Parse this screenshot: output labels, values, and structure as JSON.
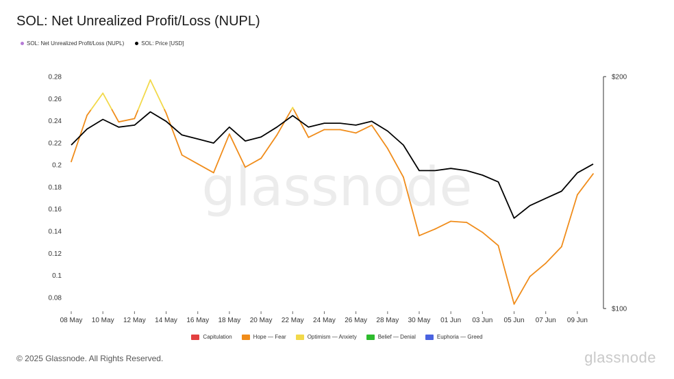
{
  "title": "SOL: Net Unrealized Profit/Loss (NUPL)",
  "top_legend": [
    {
      "label": "SOL: Net Unrealized Profit/Loss (NUPL)",
      "color": "#b57bd6"
    },
    {
      "label": "SOL: Price [USD]",
      "color": "#000000"
    }
  ],
  "bottom_legend": [
    {
      "label": "Capitulation",
      "color": "#e34040"
    },
    {
      "label": "Hope — Fear",
      "color": "#f08c1a"
    },
    {
      "label": "Optimism — Anxiety",
      "color": "#f2d94a"
    },
    {
      "label": "Belief — Denial",
      "color": "#2dbb2d"
    },
    {
      "label": "Euphoria — Greed",
      "color": "#4a63e0"
    }
  ],
  "watermark": "glassnode",
  "footer": "© 2025 Glassnode. All Rights Reserved.",
  "brand": "glassnode",
  "chart_data": {
    "type": "line",
    "x": [
      "2025-05-08",
      "2025-05-09",
      "2025-05-10",
      "2025-05-11",
      "2025-05-12",
      "2025-05-13",
      "2025-05-14",
      "2025-05-15",
      "2025-05-16",
      "2025-05-17",
      "2025-05-18",
      "2025-05-19",
      "2025-05-20",
      "2025-05-21",
      "2025-05-22",
      "2025-05-23",
      "2025-05-24",
      "2025-05-25",
      "2025-05-26",
      "2025-05-27",
      "2025-05-28",
      "2025-05-29",
      "2025-05-30",
      "2025-05-31",
      "2025-06-01",
      "2025-06-02",
      "2025-06-03",
      "2025-06-04",
      "2025-06-05",
      "2025-06-06",
      "2025-06-07",
      "2025-06-08",
      "2025-06-09",
      "2025-06-10"
    ],
    "x_ticks": [
      "08 May",
      "10 May",
      "12 May",
      "14 May",
      "16 May",
      "18 May",
      "20 May",
      "22 May",
      "24 May",
      "26 May",
      "28 May",
      "30 May",
      "01 Jun",
      "03 Jun",
      "05 Jun",
      "07 Jun",
      "09 Jun"
    ],
    "series": [
      {
        "name": "SOL: Net Unrealized Profit/Loss (NUPL)",
        "axis": "left",
        "values": [
          0.203,
          0.245,
          0.265,
          0.239,
          0.242,
          0.277,
          0.247,
          0.209,
          0.201,
          0.193,
          0.228,
          0.198,
          0.206,
          0.227,
          0.252,
          0.225,
          0.232,
          0.232,
          0.229,
          0.236,
          0.215,
          0.189,
          0.136,
          0.142,
          0.149,
          0.148,
          0.139,
          0.127,
          0.074,
          0.099,
          0.111,
          0.126,
          0.173,
          0.192
        ],
        "zone_colors": {
          "hope_fear": "#f08c1a",
          "optimism_anxiety": "#f2d94a"
        },
        "zone_threshold": 0.25
      },
      {
        "name": "SOL: Price [USD]",
        "axis": "right",
        "color": "#000000",
        "values": [
          163,
          171,
          176,
          172,
          173,
          180,
          175,
          168,
          166,
          164,
          172,
          165,
          167,
          172,
          178,
          172,
          174,
          174,
          173,
          175,
          170,
          163,
          151,
          151,
          152,
          151,
          149,
          146,
          131,
          136,
          139,
          142,
          150,
          154
        ]
      }
    ],
    "y_left": {
      "ticks": [
        0.08,
        0.1,
        0.12,
        0.14,
        0.16,
        0.18,
        0.2,
        0.22,
        0.24,
        0.26,
        0.28
      ],
      "tick_labels": [
        "0.08",
        "0.1",
        "0.12",
        "0.14",
        "0.16",
        "0.18",
        "0.2",
        "0.22",
        "0.24",
        "0.26",
        "0.28"
      ],
      "range": [
        0.07,
        0.28
      ]
    },
    "y_right": {
      "scale": "log",
      "tick_labels": [
        "$100",
        "$200"
      ],
      "tick_values": [
        100,
        200
      ],
      "range": [
        100,
        200
      ]
    }
  }
}
